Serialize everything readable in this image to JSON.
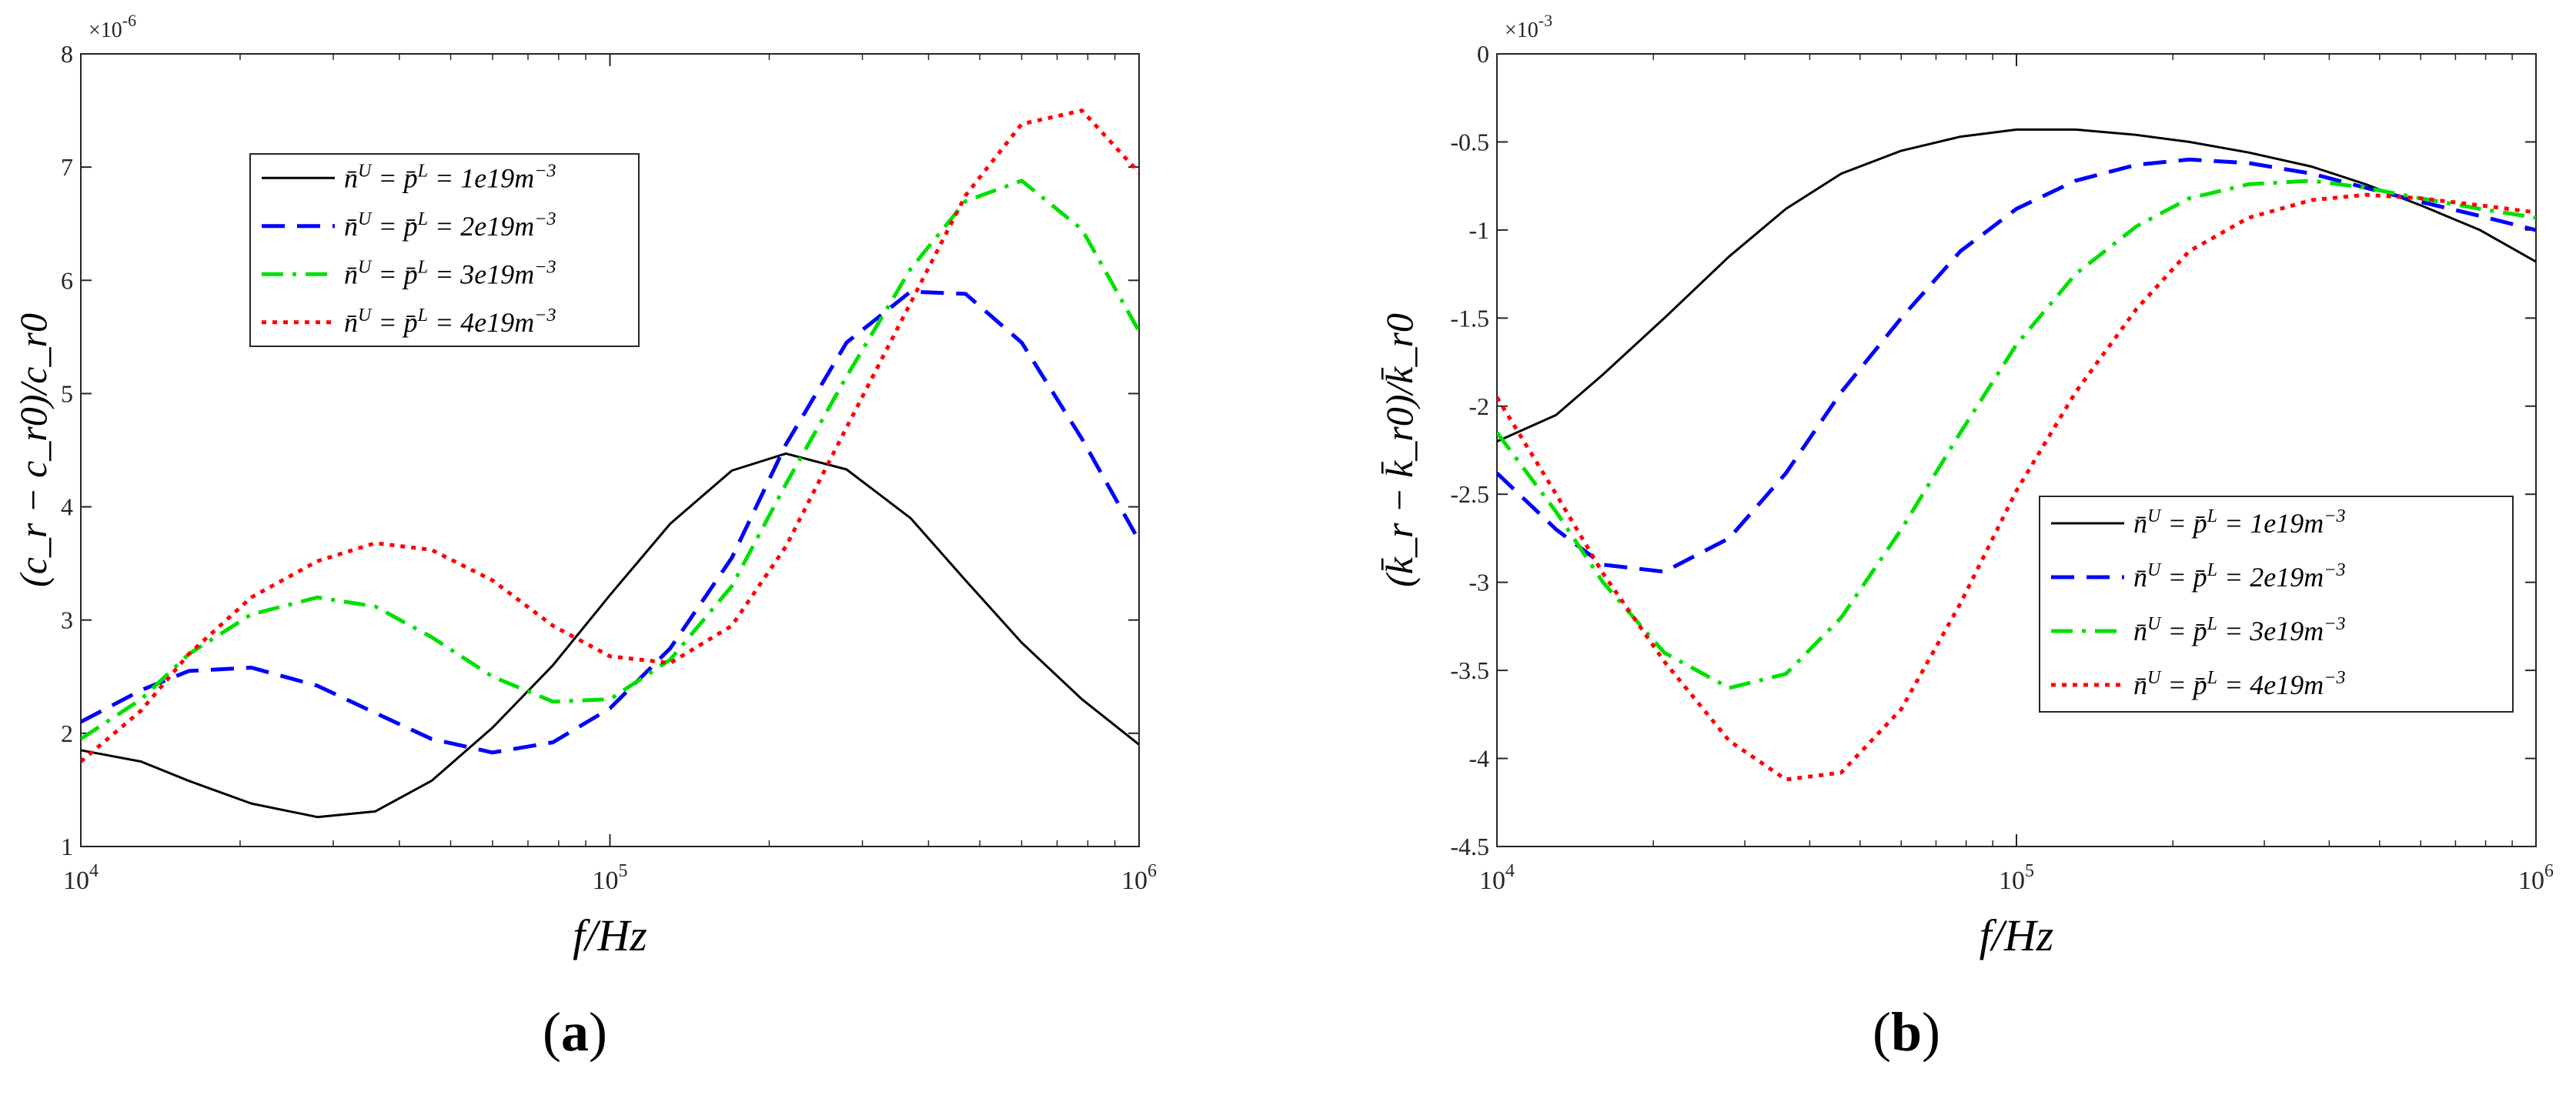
{
  "chart_data": [
    {
      "type": "line",
      "panel_label": "a",
      "xscale": "log",
      "xlim": [
        10000,
        1000000
      ],
      "ylim": [
        1,
        8
      ],
      "yticks": [
        1,
        2,
        3,
        4,
        5,
        6,
        7,
        8
      ],
      "yticklabels": [
        "1",
        "2",
        "3",
        "4",
        "5",
        "6",
        "7",
        "8"
      ],
      "xticks": [
        10000,
        100000,
        1000000
      ],
      "xticklabels": [
        {
          "base": "10",
          "exp": "4"
        },
        {
          "base": "10",
          "exp": "5"
        },
        {
          "base": "10",
          "exp": "6"
        }
      ],
      "multiplier": {
        "base": "×10",
        "exp": "-6"
      },
      "xlabel": "f/Hz",
      "ylabel": "(c_r − c_r0)/c_r0",
      "legend_position": "top-left",
      "series": [
        {
          "name": "n̄ᵁ = p̄ᴸ = 1e19m⁻³",
          "label": {
            "n": "1"
          },
          "color": "#000000",
          "dash": "solid",
          "x": [
            10000,
            13000,
            16000,
            21000,
            28000,
            36000,
            46000,
            60000,
            78000,
            100000,
            130000,
            170000,
            215000,
            280000,
            370000,
            470000,
            600000,
            780000,
            1000000
          ],
          "y": [
            1.85,
            1.75,
            1.58,
            1.38,
            1.26,
            1.31,
            1.58,
            2.05,
            2.6,
            3.22,
            3.85,
            4.32,
            4.47,
            4.33,
            3.9,
            3.35,
            2.8,
            2.3,
            1.9
          ]
        },
        {
          "name": "n̄ᵁ = p̄ᴸ = 2e19m⁻³",
          "label": {
            "n": "2"
          },
          "color": "#0000ff",
          "dash": "dashed",
          "x": [
            10000,
            13000,
            16000,
            21000,
            28000,
            36000,
            46000,
            60000,
            78000,
            100000,
            130000,
            170000,
            215000,
            280000,
            370000,
            470000,
            600000,
            780000,
            1000000
          ],
          "y": [
            2.1,
            2.38,
            2.55,
            2.58,
            2.42,
            2.18,
            1.95,
            1.83,
            1.92,
            2.22,
            2.75,
            3.55,
            4.55,
            5.45,
            5.9,
            5.88,
            5.45,
            4.6,
            3.7
          ]
        },
        {
          "name": "n̄ᵁ = p̄ᴸ = 3e19m⁻³",
          "label": {
            "n": "3"
          },
          "color": "#00e000",
          "dash": "dashdot",
          "x": [
            10000,
            13000,
            16000,
            21000,
            28000,
            36000,
            46000,
            60000,
            78000,
            100000,
            130000,
            170000,
            215000,
            280000,
            370000,
            470000,
            600000,
            780000,
            1000000
          ],
          "y": [
            1.95,
            2.3,
            2.7,
            3.05,
            3.2,
            3.12,
            2.85,
            2.5,
            2.28,
            2.3,
            2.65,
            3.3,
            4.2,
            5.15,
            6.1,
            6.7,
            6.88,
            6.45,
            5.55
          ]
        },
        {
          "name": "n̄ᵁ = p̄ᴸ = 4e19m⁻³",
          "label": {
            "n": "4"
          },
          "color": "#ff0000",
          "dash": "dotted",
          "x": [
            10000,
            13000,
            16000,
            21000,
            28000,
            36000,
            46000,
            60000,
            78000,
            100000,
            130000,
            170000,
            215000,
            280000,
            370000,
            470000,
            600000,
            780000,
            1000000
          ],
          "y": [
            1.75,
            2.2,
            2.7,
            3.2,
            3.52,
            3.68,
            3.62,
            3.35,
            2.95,
            2.68,
            2.62,
            2.95,
            3.65,
            4.7,
            5.8,
            6.75,
            7.38,
            7.5,
            6.95
          ]
        }
      ]
    },
    {
      "type": "line",
      "panel_label": "b",
      "xscale": "log",
      "xlim": [
        10000,
        1000000
      ],
      "ylim": [
        -4.5,
        0
      ],
      "yticks": [
        -4.5,
        -4,
        -3.5,
        -3,
        -2.5,
        -2,
        -1.5,
        -1,
        -0.5,
        0
      ],
      "yticklabels": [
        "-4.5",
        "-4",
        "-3.5",
        "-3",
        "-2.5",
        "-2",
        "-1.5",
        "-1",
        "-0.5",
        "0"
      ],
      "xticks": [
        10000,
        100000,
        1000000
      ],
      "xticklabels": [
        {
          "base": "10",
          "exp": "4"
        },
        {
          "base": "10",
          "exp": "5"
        },
        {
          "base": "10",
          "exp": "6"
        }
      ],
      "multiplier": {
        "base": "×10",
        "exp": "-3"
      },
      "xlabel": "f/Hz",
      "ylabel": "(k̄_r − k̄_r0)/k̄_r0",
      "legend_position": "center-right",
      "series": [
        {
          "name": "n̄ᵁ = p̄ᴸ = 1e19m⁻³",
          "label": {
            "n": "1"
          },
          "color": "#000000",
          "dash": "solid",
          "x": [
            10000,
            13000,
            16000,
            21000,
            28000,
            36000,
            46000,
            60000,
            78000,
            100000,
            130000,
            170000,
            215000,
            280000,
            370000,
            470000,
            600000,
            780000,
            1000000
          ],
          "y": [
            -2.2,
            -2.05,
            -1.82,
            -1.5,
            -1.15,
            -0.88,
            -0.68,
            -0.55,
            -0.47,
            -0.43,
            -0.43,
            -0.46,
            -0.5,
            -0.56,
            -0.64,
            -0.74,
            -0.86,
            -1.0,
            -1.18
          ]
        },
        {
          "name": "n̄ᵁ = p̄ᴸ = 2e19m⁻³",
          "label": {
            "n": "2"
          },
          "color": "#0000ff",
          "dash": "dashed",
          "x": [
            10000,
            13000,
            16000,
            21000,
            28000,
            36000,
            46000,
            60000,
            78000,
            100000,
            130000,
            170000,
            215000,
            280000,
            370000,
            470000,
            600000,
            780000,
            1000000
          ],
          "y": [
            -2.38,
            -2.7,
            -2.9,
            -2.94,
            -2.75,
            -2.38,
            -1.92,
            -1.5,
            -1.12,
            -0.88,
            -0.72,
            -0.63,
            -0.6,
            -0.62,
            -0.68,
            -0.76,
            -0.84,
            -0.92,
            -1.0
          ]
        },
        {
          "name": "n̄ᵁ = p̄ᴸ = 3e19m⁻³",
          "label": {
            "n": "3"
          },
          "color": "#00e000",
          "dash": "dashdot",
          "x": [
            10000,
            13000,
            16000,
            21000,
            28000,
            36000,
            46000,
            60000,
            78000,
            100000,
            130000,
            170000,
            215000,
            280000,
            370000,
            470000,
            600000,
            780000,
            1000000
          ],
          "y": [
            -2.15,
            -2.6,
            -3.0,
            -3.4,
            -3.6,
            -3.52,
            -3.2,
            -2.7,
            -2.15,
            -1.65,
            -1.25,
            -0.98,
            -0.82,
            -0.74,
            -0.72,
            -0.76,
            -0.82,
            -0.88,
            -0.93
          ]
        },
        {
          "name": "n̄ᵁ = p̄ᴸ = 4e19m⁻³",
          "label": {
            "n": "4"
          },
          "color": "#ff0000",
          "dash": "dotted",
          "x": [
            10000,
            13000,
            16000,
            21000,
            28000,
            36000,
            46000,
            60000,
            78000,
            100000,
            130000,
            170000,
            215000,
            280000,
            370000,
            470000,
            600000,
            780000,
            1000000
          ],
          "y": [
            -1.95,
            -2.5,
            -2.95,
            -3.45,
            -3.9,
            -4.12,
            -4.08,
            -3.72,
            -3.12,
            -2.48,
            -1.92,
            -1.45,
            -1.12,
            -0.93,
            -0.83,
            -0.8,
            -0.82,
            -0.86,
            -0.9
          ]
        }
      ]
    }
  ]
}
